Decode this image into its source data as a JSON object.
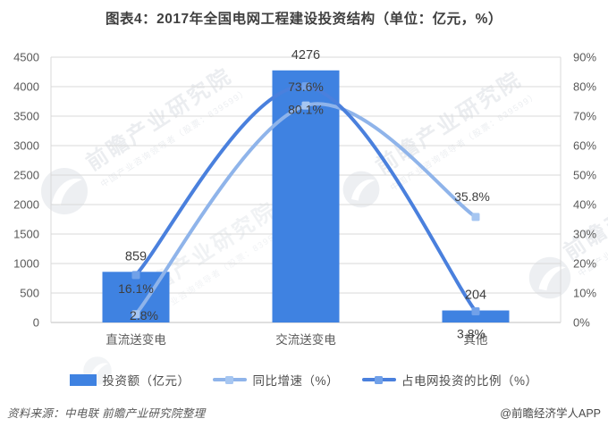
{
  "chart_data": {
    "type": "combo-bar-line",
    "title": "图表4：2017年全国电网工程建设投资结构（单位：亿元，%）",
    "categories": [
      "直流送变电",
      "交流送变电",
      "其他"
    ],
    "series": [
      {
        "name": "投资额（亿元）",
        "type": "bar",
        "axis": "left",
        "values": [
          859,
          4276,
          204
        ],
        "color": "#3f82e1"
      },
      {
        "name": "同比增速（%）",
        "type": "line",
        "axis": "right",
        "values": [
          2.8,
          73.6,
          35.8
        ],
        "labels": [
          "2.8%",
          "73.6%",
          "35.8%"
        ],
        "color": "#8fb4ea",
        "marker_color": "#a6c6f1"
      },
      {
        "name": "占电网投资的比例（%）",
        "type": "line",
        "axis": "right",
        "values": [
          16.1,
          80.1,
          3.8
        ],
        "labels": [
          "16.1%",
          "80.1%",
          "3.8%"
        ],
        "color": "#4a80dd",
        "marker_color": "#71a1e9"
      }
    ],
    "left_axis": {
      "min": 0,
      "max": 4500,
      "step": 500
    },
    "right_axis": {
      "min": 0,
      "max": 90,
      "step": 10,
      "suffix": "%"
    },
    "grid": true,
    "smooth_lines": true,
    "legend_position": "bottom",
    "grid_color": "#d9d9d9",
    "axis_line_color": "#bfbfbf",
    "tick_color": "#595959",
    "data_label_color": "#3f3f3f"
  },
  "watermark": {
    "main": "前瞻产业研究院",
    "sub": "中国产业咨询领导者（股票：839599）"
  },
  "footer": {
    "source": "资料来源：中电联  前瞻产业研究院整理",
    "credit": "@前瞻经济学人APP"
  }
}
